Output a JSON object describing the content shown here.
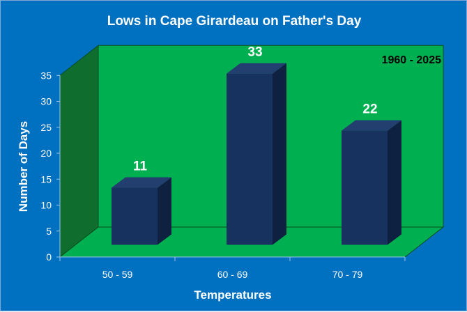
{
  "chart_data": {
    "type": "bar",
    "title": "Lows in Cape Girardeau on Father's Day",
    "annotation": "1960 - 2025",
    "xlabel": "Temperatures",
    "ylabel": "Number of Days",
    "categories": [
      "50 - 59",
      "60 - 69",
      "70 - 79"
    ],
    "values": [
      11,
      33,
      22
    ],
    "ylim": [
      0,
      35
    ],
    "yticks": [
      0,
      5,
      10,
      15,
      20,
      25,
      30,
      35
    ],
    "grid": false,
    "legend": "none",
    "colors": {
      "background": "#0070c0",
      "plot_back_wall": "#00b050",
      "plot_floor": "#00b050",
      "plot_side_wall": "#0f6e2e",
      "bar_front": "#17325e",
      "bar_top": "#223f70",
      "bar_side": "#0f2140",
      "text": "#ffffff"
    }
  }
}
